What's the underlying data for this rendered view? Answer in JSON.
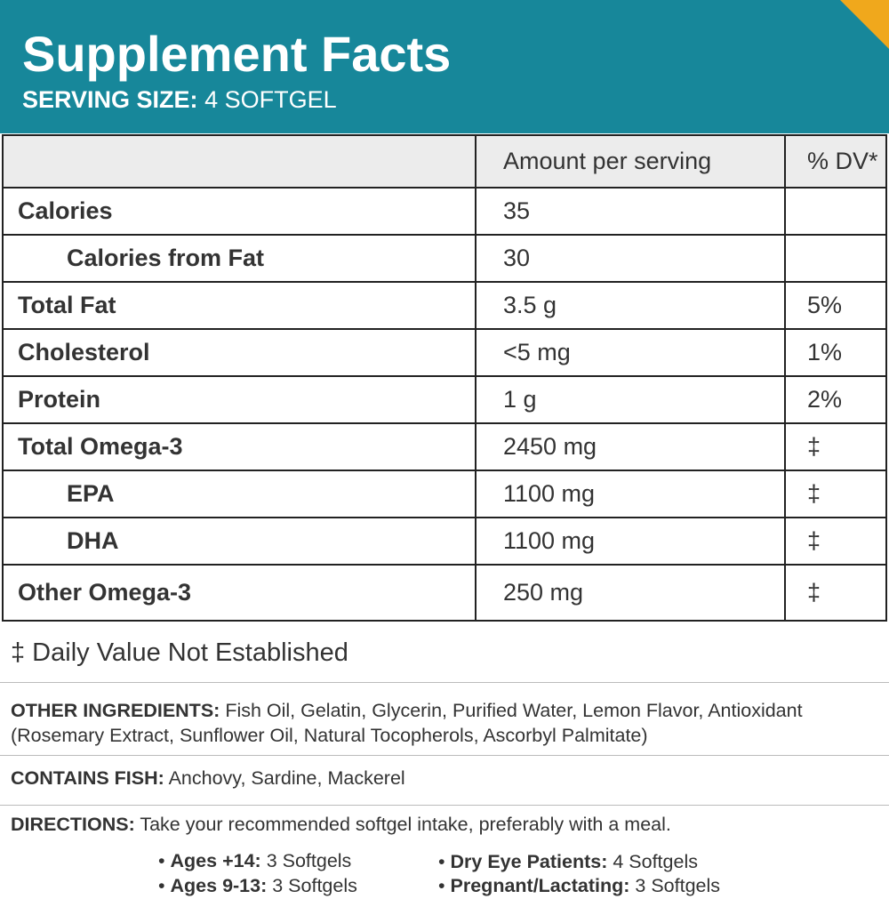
{
  "header": {
    "title": "Supplement Facts",
    "serving_label": "SERVING SIZE:",
    "serving_value": "4 SOFTGEL"
  },
  "table": {
    "columns": [
      "Amount per serving",
      "% DV*"
    ],
    "rows": [
      {
        "label": "Calories",
        "amount": "35"
      },
      {
        "label": "Calories from Fat",
        "amount": "30"
      },
      {
        "label": "Total Fat",
        "amount": "3.5 g",
        "dv": "5%"
      },
      {
        "label": "Cholesterol",
        "amount": "<5 mg",
        "dv": "1%"
      },
      {
        "label": "Protein",
        "amount": "1 g",
        "dv": "2%"
      },
      {
        "label": "Total Omega-3",
        "amount": "2450 mg",
        "dv": "‡"
      },
      {
        "label": "EPA",
        "amount": "1100 mg",
        "dv": "‡"
      },
      {
        "label": "DHA",
        "amount": "1100 mg",
        "dv": "‡"
      },
      {
        "label": "Other Omega-3",
        "amount": "250 mg",
        "dv": "‡"
      }
    ]
  },
  "footnote": "‡ Daily Value Not Established",
  "other_ingredients": {
    "label": "OTHER INGREDIENTS:",
    "text": "Fish Oil, Gelatin, Glycerin, Purified Water, Lemon Flavor, Antioxidant (Rosemary Extract, Sunflower Oil, Natural Tocopherols, Ascorbyl Palmitate)"
  },
  "contains_fish": {
    "label": "CONTAINS FISH:",
    "text": "Anchovy, Sardine, Mackerel"
  },
  "directions": {
    "label": "DIRECTIONS:",
    "text": "Take your recommended softgel intake, preferably with a meal.",
    "items": [
      {
        "label": "Ages +14:",
        "text": "3 Softgels"
      },
      {
        "label": "Ages 9-13:",
        "text": "3 Softgels"
      },
      {
        "label": "Dry Eye Patients:",
        "text": "4 Softgels"
      },
      {
        "label": "Pregnant/Lactating:",
        "text": "3 Softgels"
      }
    ]
  }
}
